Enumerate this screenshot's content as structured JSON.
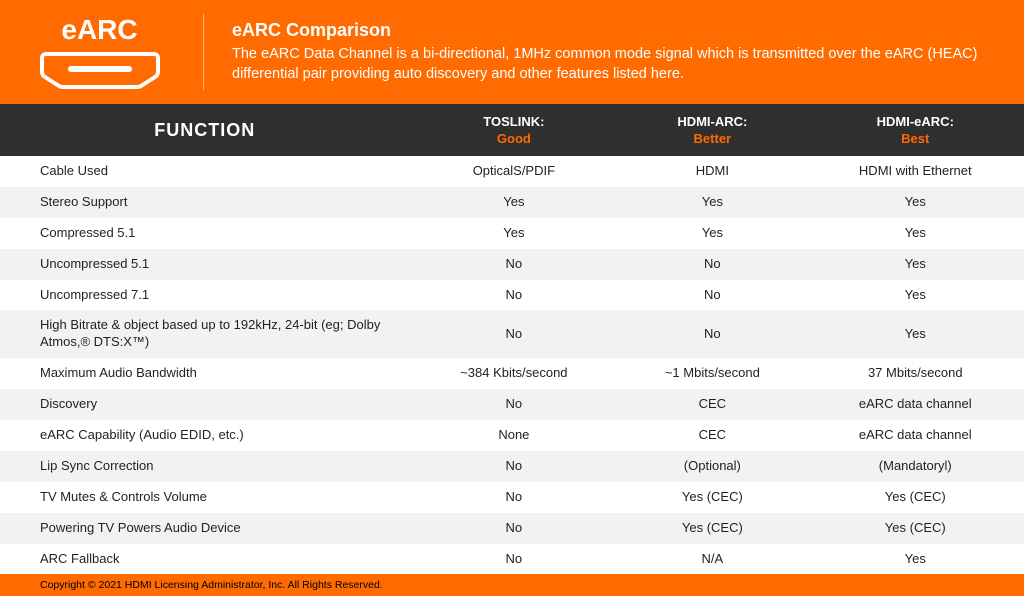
{
  "colors": {
    "accent": "#ff6b00",
    "header_bg": "#2f2f2f",
    "row_alt": "#f2f2f2",
    "text": "#222222",
    "white": "#ffffff"
  },
  "logo": {
    "label": "eARC"
  },
  "header": {
    "title": "eARC Comparison",
    "description": "The eARC Data Channel is a bi-directional, 1MHz common mode signal which is transmitted over the eARC (HEAC) differential pair providing auto discovery and other features listed here."
  },
  "table_type": "table",
  "columns": {
    "func": {
      "label": "FUNCTION"
    },
    "toslink": {
      "label": "TOSLINK:",
      "sub": "Good"
    },
    "arc": {
      "label": "HDMI-ARC:",
      "sub": "Better"
    },
    "earc": {
      "label": "HDMI-eARC:",
      "sub": "Best"
    }
  },
  "rows": [
    {
      "func": "Cable Used",
      "toslink": "OpticalS/PDIF",
      "arc": "HDMI",
      "earc": "HDMI with Ethernet"
    },
    {
      "func": "Stereo Support",
      "toslink": "Yes",
      "arc": "Yes",
      "earc": "Yes"
    },
    {
      "func": "Compressed 5.1",
      "toslink": "Yes",
      "arc": "Yes",
      "earc": "Yes"
    },
    {
      "func": "Uncompressed 5.1",
      "toslink": "No",
      "arc": "No",
      "earc": "Yes"
    },
    {
      "func": "Uncompressed 7.1",
      "toslink": "No",
      "arc": "No",
      "earc": "Yes"
    },
    {
      "func": "High Bitrate & object based up to 192kHz, 24-bit (eg; Dolby Atmos,® DTS:X™)",
      "toslink": "No",
      "arc": "No",
      "earc": "Yes"
    },
    {
      "func": "Maximum Audio Bandwidth",
      "toslink": "~384 Kbits/second",
      "arc": "~1 Mbits/second",
      "earc": "37 Mbits/second"
    },
    {
      "func": "Discovery",
      "toslink": "No",
      "arc": "CEC",
      "earc": "eARC data channel"
    },
    {
      "func": "eARC Capability (Audio EDID, etc.)",
      "toslink": "None",
      "arc": "CEC",
      "earc": "eARC data channel"
    },
    {
      "func": "Lip Sync Correction",
      "toslink": "No",
      "arc": "(Optional)",
      "earc": "(Mandatoryl)"
    },
    {
      "func": "TV Mutes & Controls Volume",
      "toslink": "No",
      "arc": "Yes (CEC)",
      "earc": "Yes (CEC)"
    },
    {
      "func": "Powering TV Powers Audio Device",
      "toslink": "No",
      "arc": "Yes (CEC)",
      "earc": "Yes (CEC)"
    },
    {
      "func": "ARC Fallback",
      "toslink": "No",
      "arc": "N/A",
      "earc": "Yes"
    }
  ],
  "footer": {
    "copyright": "Copyright © 2021 HDMI Licensing Administrator, Inc. All Rights Reserved."
  }
}
